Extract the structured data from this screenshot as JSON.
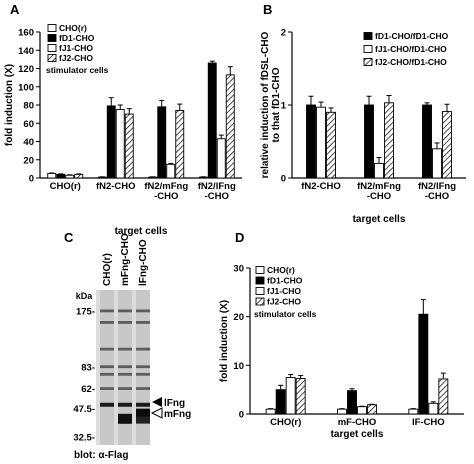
{
  "panels": {
    "A": "A",
    "B": "B",
    "C": "C",
    "D": "D"
  },
  "colors": {
    "black": "#000000",
    "white": "#ffffff",
    "hatch": "#cfcfcf"
  },
  "chart_data": [
    {
      "panel": "A",
      "type": "bar",
      "ylabel": "fold induction (X)",
      "xlabel": "target cells",
      "ylim": [
        0,
        160
      ],
      "yticks": [
        "0",
        "20",
        "40",
        "60",
        "80",
        "100",
        "120",
        "140",
        "160"
      ],
      "categories": [
        "CHO(r)",
        "fN2-CHO",
        "fN2/mFng\n-CHO",
        "fN2/lFng\n-CHO"
      ],
      "legend_title": "stimulator cells",
      "legend_placement": "top-left",
      "series": [
        {
          "name": "CHO(r)",
          "fill": "white",
          "values": [
            5,
            1,
            1,
            1
          ],
          "errors": [
            0.5,
            0.3,
            0.3,
            0.3
          ]
        },
        {
          "name": "fD1-CHO",
          "fill": "black",
          "values": [
            4,
            79,
            78,
            126
          ],
          "errors": [
            0.5,
            9,
            7,
            2
          ]
        },
        {
          "name": "fJ1-CHO",
          "fill": "white",
          "values": [
            3,
            75,
            15,
            43
          ],
          "errors": [
            0.5,
            5,
            1,
            4
          ]
        },
        {
          "name": "fJ2-CHO",
          "fill": "hatch",
          "values": [
            4,
            70,
            74,
            113
          ],
          "errors": [
            0.5,
            6,
            7,
            9
          ]
        }
      ]
    },
    {
      "panel": "B",
      "type": "bar",
      "ylabel": "relative induction of fDSL-CHO\nto that fD1-CHO",
      "xlabel": "target cells",
      "ylim": [
        0,
        2
      ],
      "yticks": [
        "0",
        "1",
        "2"
      ],
      "categories": [
        "fN2-CHO",
        "fN2/mFng\n-CHO",
        "fN2/lFng\n-CHO"
      ],
      "legend_placement": "top-right",
      "series": [
        {
          "name": "fD1-CHO/fD1-CHO",
          "fill": "black",
          "values": [
            1.0,
            1.0,
            1.0
          ],
          "errors": [
            0.12,
            0.12,
            0.03
          ]
        },
        {
          "name": "fJ1-CHO/fD1-CHO",
          "fill": "white",
          "values": [
            0.97,
            0.2,
            0.4
          ],
          "errors": [
            0.07,
            0.08,
            0.08
          ]
        },
        {
          "name": "fJ2-CHO/fD1-CHO",
          "fill": "hatch",
          "values": [
            0.9,
            1.03,
            0.91
          ],
          "errors": [
            0.06,
            0.1,
            0.1
          ]
        }
      ]
    },
    {
      "panel": "C",
      "type": "blot",
      "lanes": [
        "CHO(r)",
        "mFng-CHO",
        "lFng-CHO"
      ],
      "marker_unit": "kDa",
      "markers": [
        "175-",
        "83-",
        "62-",
        "47.5-",
        "32.5-"
      ],
      "marker_kda": [
        175,
        83,
        62,
        47.5,
        32.5
      ],
      "band_labels": [
        "lFng",
        "mFng"
      ],
      "caption": "blot: α-Flag"
    },
    {
      "panel": "D",
      "type": "bar",
      "ylabel": "fold induction (X)",
      "xlabel": "target cells",
      "ylim": [
        0,
        30
      ],
      "yticks": [
        "0",
        "10",
        "20",
        "30"
      ],
      "categories": [
        "CHO(r)",
        "mF-CHO",
        "lF-CHO"
      ],
      "legend_title": "stimulator cells",
      "legend_placement": "top-left",
      "series": [
        {
          "name": "CHO(r)",
          "fill": "white",
          "values": [
            1,
            1,
            1
          ],
          "errors": [
            0.1,
            0.1,
            0.1
          ]
        },
        {
          "name": "fD1-CHO",
          "fill": "black",
          "values": [
            5,
            4.8,
            20.5
          ],
          "errors": [
            0.9,
            0.4,
            3
          ]
        },
        {
          "name": "fJ1-CHO",
          "fill": "white",
          "values": [
            7.5,
            1.5,
            2.2
          ],
          "errors": [
            0.6,
            0.1,
            0.3
          ]
        },
        {
          "name": "fJ2-CHO",
          "fill": "hatch",
          "values": [
            7.3,
            1.9,
            7.2
          ],
          "errors": [
            0.6,
            0.1,
            1.2
          ]
        }
      ]
    }
  ]
}
